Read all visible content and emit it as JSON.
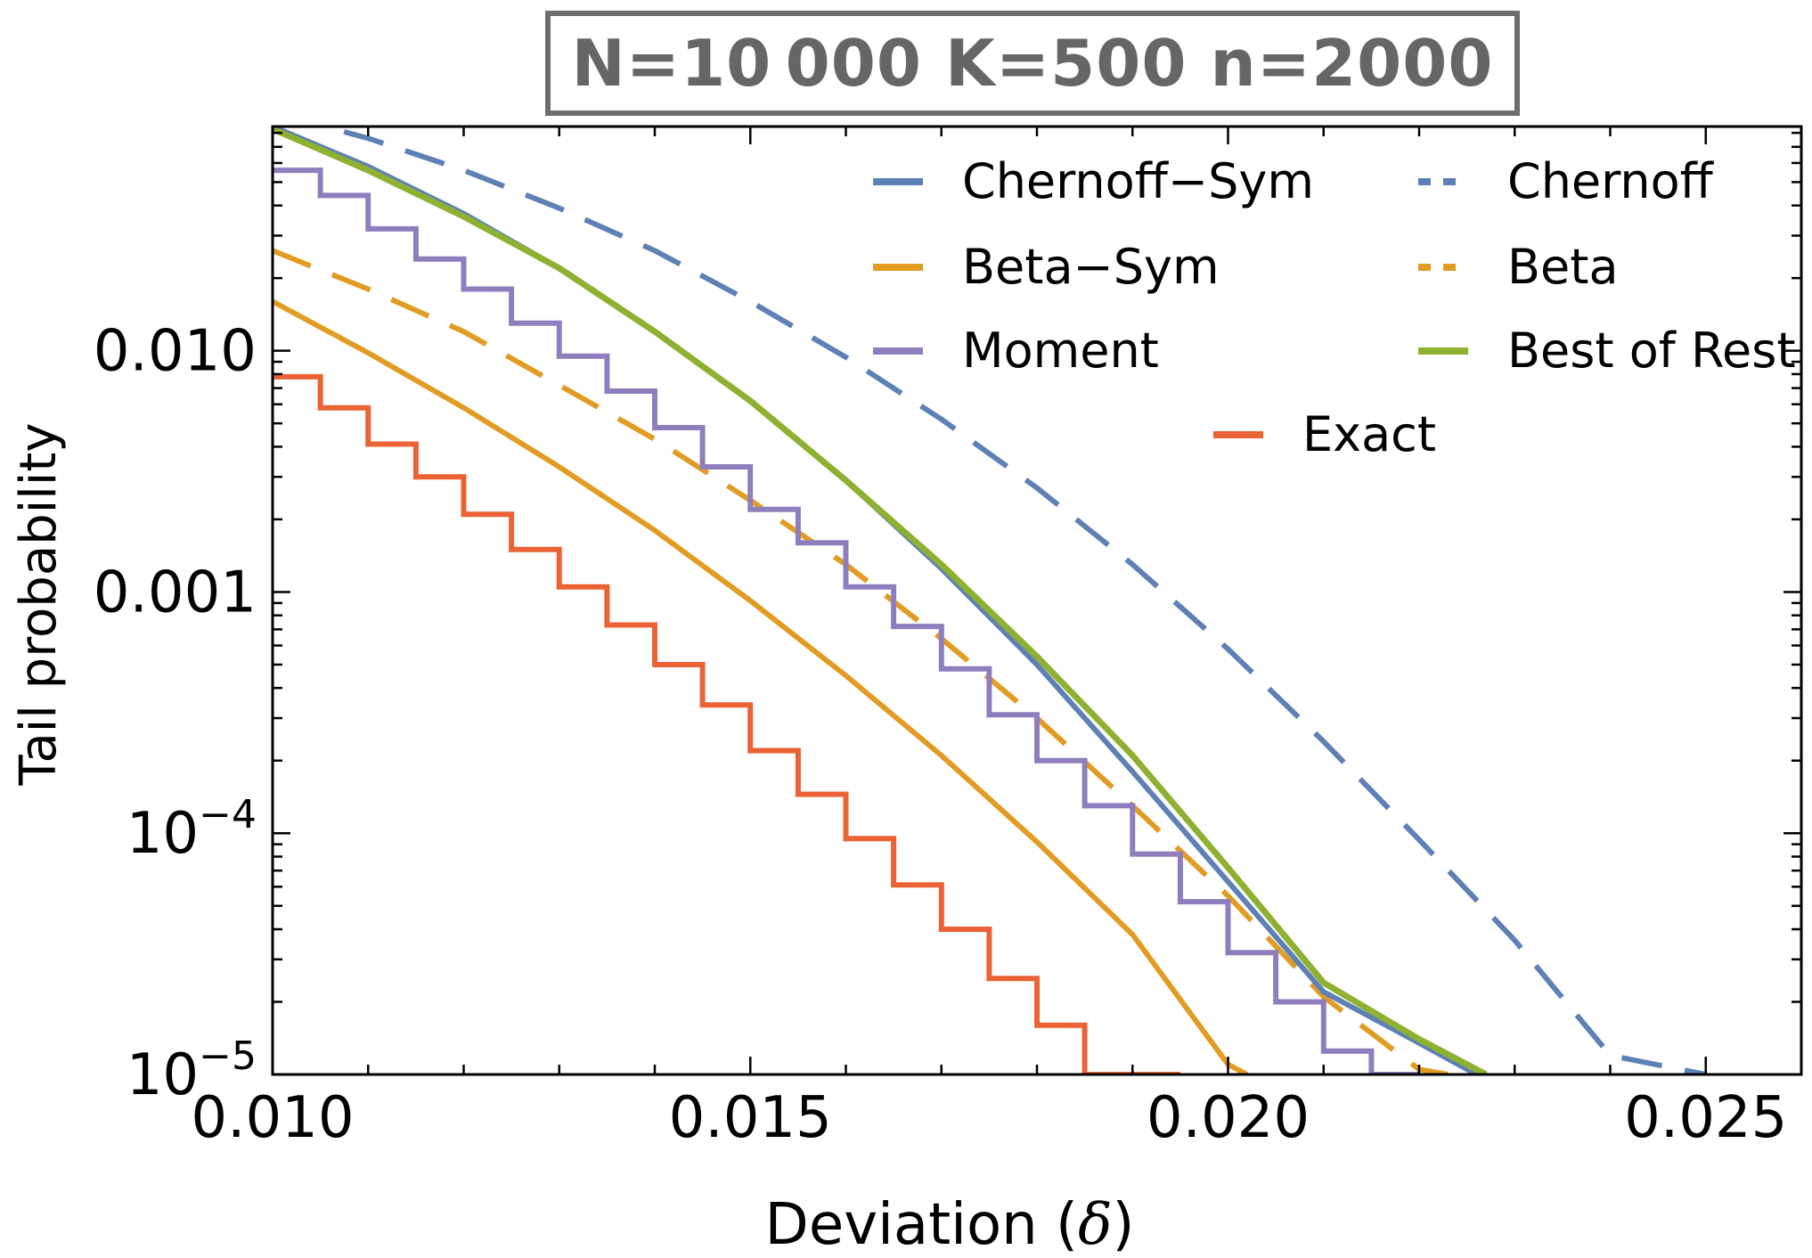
{
  "chart_data": {
    "type": "line",
    "title": "N=10 000   K=500   n=2000",
    "xlabel": "Deviation (",
    "xlabel_symbol": "δ",
    "xlabel_close": ")",
    "ylabel": "Tail probability",
    "xlim": [
      0.01,
      0.026
    ],
    "ylim": [
      1e-05,
      0.085
    ],
    "yscale": "log",
    "x_ticks": [
      {
        "value": 0.01,
        "label": "0.010"
      },
      {
        "value": 0.015,
        "label": "0.015"
      },
      {
        "value": 0.02,
        "label": "0.020"
      },
      {
        "value": 0.025,
        "label": "0.025"
      }
    ],
    "y_ticks": [
      {
        "value": 0.01,
        "label": "0.010"
      },
      {
        "value": 0.001,
        "label": "0.001"
      },
      {
        "value": 0.0001,
        "label": "10",
        "exp": "−4"
      },
      {
        "value": 1e-05,
        "label": "10",
        "exp": "−5"
      }
    ],
    "legend_position": "top-right",
    "series": [
      {
        "name": "Chernoff−Sym",
        "color": "#5e81b5",
        "style": "solid",
        "x": [
          0.01,
          0.011,
          0.012,
          0.013,
          0.014,
          0.015,
          0.016,
          0.017,
          0.018,
          0.019,
          0.02,
          0.021,
          0.022,
          0.0226
        ],
        "y": [
          0.085,
          0.058,
          0.037,
          0.022,
          0.012,
          0.0062,
          0.0029,
          0.00125,
          0.0005,
          0.00018,
          6.3e-05,
          2.2e-05,
          1.35e-05,
          1e-05
        ]
      },
      {
        "name": "Chernoff",
        "color": "#5e81b5",
        "style": "dashed",
        "x": [
          0.0101,
          0.011,
          0.012,
          0.013,
          0.014,
          0.015,
          0.016,
          0.017,
          0.018,
          0.019,
          0.02,
          0.021,
          0.022,
          0.023,
          0.024,
          0.025
        ],
        "y": [
          0.095,
          0.076,
          0.056,
          0.039,
          0.026,
          0.016,
          0.0094,
          0.0052,
          0.0027,
          0.0013,
          0.00058,
          0.00024,
          9.4e-05,
          3.6e-05,
          1.2e-05,
          1e-05
        ]
      },
      {
        "name": "Beta−Sym",
        "color": "#e19c24",
        "style": "solid",
        "x": [
          0.01,
          0.011,
          0.012,
          0.013,
          0.014,
          0.015,
          0.016,
          0.017,
          0.018,
          0.019,
          0.02,
          0.0202
        ],
        "y": [
          0.016,
          0.0098,
          0.0058,
          0.0033,
          0.0018,
          0.00092,
          0.00045,
          0.00021,
          9.2e-05,
          3.8e-05,
          1.1e-05,
          1e-05
        ]
      },
      {
        "name": "Beta",
        "color": "#e19c24",
        "style": "dashed",
        "x": [
          0.01,
          0.011,
          0.012,
          0.013,
          0.014,
          0.015,
          0.016,
          0.017,
          0.018,
          0.019,
          0.02,
          0.021,
          0.022,
          0.0223
        ],
        "y": [
          0.026,
          0.018,
          0.012,
          0.0072,
          0.0043,
          0.0024,
          0.0013,
          0.00064,
          0.0003,
          0.00013,
          5.5e-05,
          2.1e-05,
          1.05e-05,
          1e-05
        ]
      },
      {
        "name": "Moment",
        "color": "#8f7ebd",
        "style": "step",
        "x": [
          0.01,
          0.0105,
          0.011,
          0.0115,
          0.012,
          0.0125,
          0.013,
          0.0135,
          0.014,
          0.0145,
          0.015,
          0.0155,
          0.016,
          0.0165,
          0.017,
          0.0175,
          0.018,
          0.0185,
          0.019,
          0.0195,
          0.02,
          0.0205,
          0.021,
          0.0215
        ],
        "y": [
          0.056,
          0.044,
          0.032,
          0.024,
          0.018,
          0.013,
          0.0095,
          0.0068,
          0.0048,
          0.0033,
          0.0022,
          0.0016,
          0.00105,
          0.00072,
          0.00048,
          0.00031,
          0.0002,
          0.00013,
          8.2e-05,
          5.2e-05,
          3.2e-05,
          2e-05,
          1.25e-05,
          1e-05
        ]
      },
      {
        "name": "Best of Rest",
        "color": "#8fb131",
        "style": "solid",
        "x": [
          0.01,
          0.011,
          0.012,
          0.013,
          0.014,
          0.015,
          0.016,
          0.017,
          0.018,
          0.019,
          0.02,
          0.021,
          0.022,
          0.0227
        ],
        "y": [
          0.083,
          0.056,
          0.036,
          0.022,
          0.012,
          0.0062,
          0.0029,
          0.0013,
          0.00054,
          0.00021,
          7.2e-05,
          2.4e-05,
          1.4e-05,
          1e-05
        ]
      },
      {
        "name": "Exact",
        "color": "#eb6235",
        "style": "step",
        "x": [
          0.01,
          0.0105,
          0.011,
          0.0115,
          0.012,
          0.0125,
          0.013,
          0.0135,
          0.014,
          0.0145,
          0.015,
          0.0155,
          0.016,
          0.0165,
          0.017,
          0.0175,
          0.018,
          0.0185,
          0.019
        ],
        "y": [
          0.0078,
          0.0058,
          0.0041,
          0.003,
          0.0021,
          0.0015,
          0.00105,
          0.00073,
          0.0005,
          0.00034,
          0.00022,
          0.000145,
          9.5e-05,
          6.1e-05,
          4e-05,
          2.5e-05,
          1.6e-05,
          1e-05,
          1e-05
        ]
      }
    ]
  }
}
